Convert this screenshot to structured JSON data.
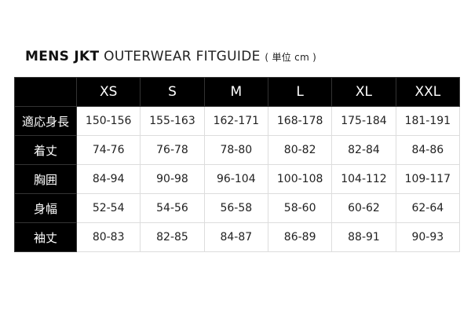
{
  "title": {
    "bold": "MENS JKT",
    "light": "OUTERWEAR FITGUIDE",
    "unit": "( 単位 cm )"
  },
  "table": {
    "columns": [
      "XS",
      "S",
      "M",
      "L",
      "XL",
      "XXL"
    ],
    "rows": [
      {
        "label": "適応身長",
        "values": [
          "150-156",
          "155-163",
          "162-171",
          "168-178",
          "175-184",
          "181-191"
        ]
      },
      {
        "label": "着丈",
        "values": [
          "74-76",
          "76-78",
          "78-80",
          "80-82",
          "82-84",
          "84-86"
        ]
      },
      {
        "label": "胸囲",
        "values": [
          "84-94",
          "90-98",
          "96-104",
          "100-108",
          "104-112",
          "109-117"
        ]
      },
      {
        "label": "身幅",
        "values": [
          "52-54",
          "54-56",
          "56-58",
          "58-60",
          "60-62",
          "62-64"
        ]
      },
      {
        "label": "袖丈",
        "values": [
          "80-83",
          "82-85",
          "84-87",
          "86-89",
          "88-91",
          "90-93"
        ]
      }
    ]
  },
  "colors": {
    "header_bg": "#000000",
    "header_text": "#ffffff",
    "grid": "#dddddd"
  }
}
